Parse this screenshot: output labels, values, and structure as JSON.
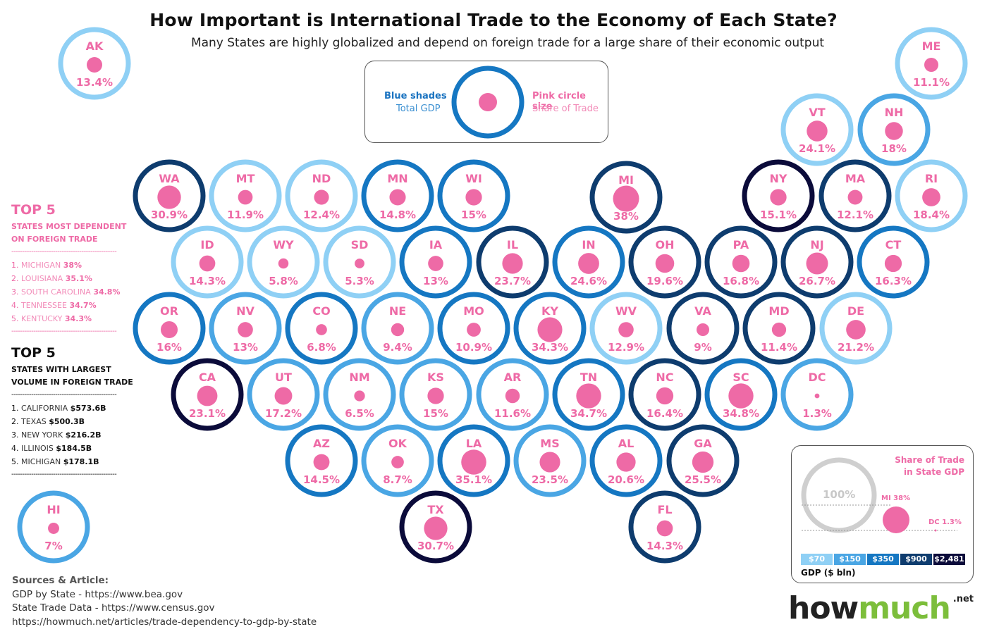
{
  "title": "How Important is International Trade to the Economy of Each State?",
  "subtitle": "Many States are highly globalized and depend on foreign trade for a large share of their economic output",
  "legend": {
    "blue_label": "Blue shades",
    "blue_desc": "Total GDP",
    "pink_label": "Pink circle size",
    "pink_desc": "Share of Trade"
  },
  "colors": {
    "pink": "#ee6aa6",
    "gdp_70": "#8fd0f5",
    "gdp_150": "#4aa6e4",
    "gdp_350": "#1577c2",
    "gdp_900": "#0e3c6e",
    "gdp_max": "#0b0b3a"
  },
  "states": [
    {
      "abbr": "AK",
      "pct": "13.4%",
      "value": 13.4,
      "tier": "gdp_70"
    },
    {
      "abbr": "ME",
      "pct": "11.1%",
      "value": 11.1,
      "tier": "gdp_70"
    },
    {
      "abbr": "VT",
      "pct": "24.1%",
      "value": 24.1,
      "tier": "gdp_70"
    },
    {
      "abbr": "NH",
      "pct": "18%",
      "value": 18,
      "tier": "gdp_150"
    },
    {
      "abbr": "WA",
      "pct": "30.9%",
      "value": 30.9,
      "tier": "gdp_900"
    },
    {
      "abbr": "MT",
      "pct": "11.9%",
      "value": 11.9,
      "tier": "gdp_70"
    },
    {
      "abbr": "ND",
      "pct": "12.4%",
      "value": 12.4,
      "tier": "gdp_70"
    },
    {
      "abbr": "MN",
      "pct": "14.8%",
      "value": 14.8,
      "tier": "gdp_350"
    },
    {
      "abbr": "WI",
      "pct": "15%",
      "value": 15,
      "tier": "gdp_350"
    },
    {
      "abbr": "MI",
      "pct": "38%",
      "value": 38,
      "tier": "gdp_900"
    },
    {
      "abbr": "NY",
      "pct": "15.1%",
      "value": 15.1,
      "tier": "gdp_max"
    },
    {
      "abbr": "MA",
      "pct": "12.1%",
      "value": 12.1,
      "tier": "gdp_900"
    },
    {
      "abbr": "RI",
      "pct": "18.4%",
      "value": 18.4,
      "tier": "gdp_70"
    },
    {
      "abbr": "ID",
      "pct": "14.3%",
      "value": 14.3,
      "tier": "gdp_70"
    },
    {
      "abbr": "WY",
      "pct": "5.8%",
      "value": 5.8,
      "tier": "gdp_70"
    },
    {
      "abbr": "SD",
      "pct": "5.3%",
      "value": 5.3,
      "tier": "gdp_70"
    },
    {
      "abbr": "IA",
      "pct": "13%",
      "value": 13,
      "tier": "gdp_350"
    },
    {
      "abbr": "IL",
      "pct": "23.7%",
      "value": 23.7,
      "tier": "gdp_900"
    },
    {
      "abbr": "IN",
      "pct": "24.6%",
      "value": 24.6,
      "tier": "gdp_350"
    },
    {
      "abbr": "OH",
      "pct": "19.6%",
      "value": 19.6,
      "tier": "gdp_900"
    },
    {
      "abbr": "PA",
      "pct": "16.8%",
      "value": 16.8,
      "tier": "gdp_900"
    },
    {
      "abbr": "NJ",
      "pct": "26.7%",
      "value": 26.7,
      "tier": "gdp_900"
    },
    {
      "abbr": "CT",
      "pct": "16.3%",
      "value": 16.3,
      "tier": "gdp_350"
    },
    {
      "abbr": "OR",
      "pct": "16%",
      "value": 16,
      "tier": "gdp_350"
    },
    {
      "abbr": "NV",
      "pct": "13%",
      "value": 13,
      "tier": "gdp_150"
    },
    {
      "abbr": "CO",
      "pct": "6.8%",
      "value": 6.8,
      "tier": "gdp_350"
    },
    {
      "abbr": "NE",
      "pct": "9.4%",
      "value": 9.4,
      "tier": "gdp_150"
    },
    {
      "abbr": "MO",
      "pct": "10.9%",
      "value": 10.9,
      "tier": "gdp_350"
    },
    {
      "abbr": "KY",
      "pct": "34.3%",
      "value": 34.3,
      "tier": "gdp_350"
    },
    {
      "abbr": "WV",
      "pct": "12.9%",
      "value": 12.9,
      "tier": "gdp_70"
    },
    {
      "abbr": "VA",
      "pct": "9%",
      "value": 9,
      "tier": "gdp_900"
    },
    {
      "abbr": "MD",
      "pct": "11.4%",
      "value": 11.4,
      "tier": "gdp_900"
    },
    {
      "abbr": "DE",
      "pct": "21.2%",
      "value": 21.2,
      "tier": "gdp_70"
    },
    {
      "abbr": "CA",
      "pct": "23.1%",
      "value": 23.1,
      "tier": "gdp_max"
    },
    {
      "abbr": "UT",
      "pct": "17.2%",
      "value": 17.2,
      "tier": "gdp_150"
    },
    {
      "abbr": "NM",
      "pct": "6.5%",
      "value": 6.5,
      "tier": "gdp_150"
    },
    {
      "abbr": "KS",
      "pct": "15%",
      "value": 15,
      "tier": "gdp_150"
    },
    {
      "abbr": "AR",
      "pct": "11.6%",
      "value": 11.6,
      "tier": "gdp_150"
    },
    {
      "abbr": "TN",
      "pct": "34.7%",
      "value": 34.7,
      "tier": "gdp_350"
    },
    {
      "abbr": "NC",
      "pct": "16.4%",
      "value": 16.4,
      "tier": "gdp_900"
    },
    {
      "abbr": "SC",
      "pct": "34.8%",
      "value": 34.8,
      "tier": "gdp_350"
    },
    {
      "abbr": "DC",
      "pct": "1.3%",
      "value": 1.3,
      "tier": "gdp_150"
    },
    {
      "abbr": "AZ",
      "pct": "14.5%",
      "value": 14.5,
      "tier": "gdp_350"
    },
    {
      "abbr": "OK",
      "pct": "8.7%",
      "value": 8.7,
      "tier": "gdp_150"
    },
    {
      "abbr": "LA",
      "pct": "35.1%",
      "value": 35.1,
      "tier": "gdp_350"
    },
    {
      "abbr": "MS",
      "pct": "23.5%",
      "value": 23.5,
      "tier": "gdp_150"
    },
    {
      "abbr": "AL",
      "pct": "20.6%",
      "value": 20.6,
      "tier": "gdp_350"
    },
    {
      "abbr": "GA",
      "pct": "25.5%",
      "value": 25.5,
      "tier": "gdp_900"
    },
    {
      "abbr": "HI",
      "pct": "7%",
      "value": 7,
      "tier": "gdp_150"
    },
    {
      "abbr": "TX",
      "pct": "30.7%",
      "value": 30.7,
      "tier": "gdp_max"
    },
    {
      "abbr": "FL",
      "pct": "14.3%",
      "value": 14.3,
      "tier": "gdp_900"
    }
  ],
  "top5_dependent": {
    "heading": "TOP 5",
    "subheading_1": "STATES MOST DEPENDENT",
    "subheading_2": "ON FOREIGN TRADE",
    "items": [
      {
        "rank": "1.",
        "name": "MICHIGAN",
        "value": "38%"
      },
      {
        "rank": "2.",
        "name": "LOUISIANA",
        "value": "35.1%"
      },
      {
        "rank": "3.",
        "name": "SOUTH CAROLINA",
        "value": "34.8%"
      },
      {
        "rank": "4.",
        "name": "TENNESSEE",
        "value": "34.7%"
      },
      {
        "rank": "5.",
        "name": "KENTUCKY",
        "value": "34.3%"
      }
    ]
  },
  "top5_volume": {
    "heading": "TOP 5",
    "subheading_1": "STATES WITH LARGEST",
    "subheading_2": "VOLUME IN FOREIGN TRADE",
    "items": [
      {
        "rank": "1.",
        "name": "CALIFORNIA",
        "value": "$573.6B"
      },
      {
        "rank": "2.",
        "name": "TEXAS",
        "value": "$500.3B"
      },
      {
        "rank": "3.",
        "name": "NEW YORK",
        "value": "$216.2B"
      },
      {
        "rank": "4.",
        "name": "ILLINOIS",
        "value": "$184.5B"
      },
      {
        "rank": "5.",
        "name": "MICHIGAN",
        "value": "$178.1B"
      }
    ]
  },
  "gdp_legend": {
    "title_1": "Share of Trade",
    "title_2": "in State GDP",
    "ref_label": "100%",
    "mi_label": "MI 38%",
    "dc_label": "DC 1.3%",
    "scale": [
      "$70",
      "$150",
      "$350",
      "$900",
      "$2,481"
    ],
    "axis_label": "GDP ($ bln)"
  },
  "sources": {
    "heading": "Sources & Article:",
    "lines": [
      "GDP by State - https://www.bea.gov",
      "State Trade Data - https://www.census.gov",
      "https://howmuch.net/articles/trade-dependency-to-gdp-by-state"
    ]
  },
  "logo": {
    "how": "how",
    "much": "much",
    "net": ".net"
  }
}
